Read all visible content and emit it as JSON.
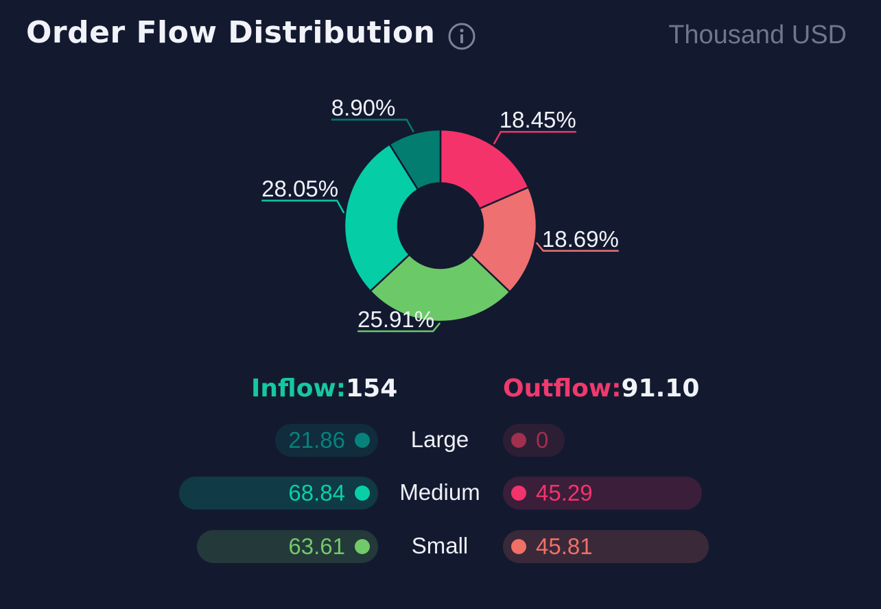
{
  "header": {
    "title": "Order Flow Distribution",
    "unit": "Thousand USD"
  },
  "chart_data": {
    "type": "pie",
    "donut": true,
    "slices": [
      {
        "label": "18.45%",
        "value": 18.45,
        "color": "#f5336b",
        "group": "Outflow Medium"
      },
      {
        "label": "18.69%",
        "value": 18.69,
        "color": "#ee7070",
        "group": "Outflow Small"
      },
      {
        "label": "25.91%",
        "value": 25.91,
        "color": "#6cc967",
        "group": "Inflow Small"
      },
      {
        "label": "28.05%",
        "value": 28.05,
        "color": "#05cda5",
        "group": "Inflow Medium"
      },
      {
        "label": "8.90%",
        "value": 8.9,
        "color": "#027d6f",
        "group": "Inflow Large"
      }
    ]
  },
  "totals": {
    "inflow_label": "Inflow:",
    "inflow_value": "154",
    "outflow_label": "Outflow:",
    "outflow_value": "91.10"
  },
  "rows": [
    {
      "label": "Large",
      "inflow": "21.86",
      "outflow": "0",
      "inflow_color": "#07827a",
      "outflow_color": "#a0304e",
      "inflow_fraction": 0.14,
      "outflow_fraction": 0.0
    },
    {
      "label": "Medium",
      "inflow": "68.84",
      "outflow": "45.29",
      "inflow_color": "#08cfa7",
      "outflow_color": "#f3336b",
      "inflow_fraction": 0.45,
      "outflow_fraction": 0.29
    },
    {
      "label": "Small",
      "inflow": "63.61",
      "outflow": "45.81",
      "inflow_color": "#72c96a",
      "outflow_color": "#f07066",
      "inflow_fraction": 0.41,
      "outflow_fraction": 0.3
    }
  ]
}
